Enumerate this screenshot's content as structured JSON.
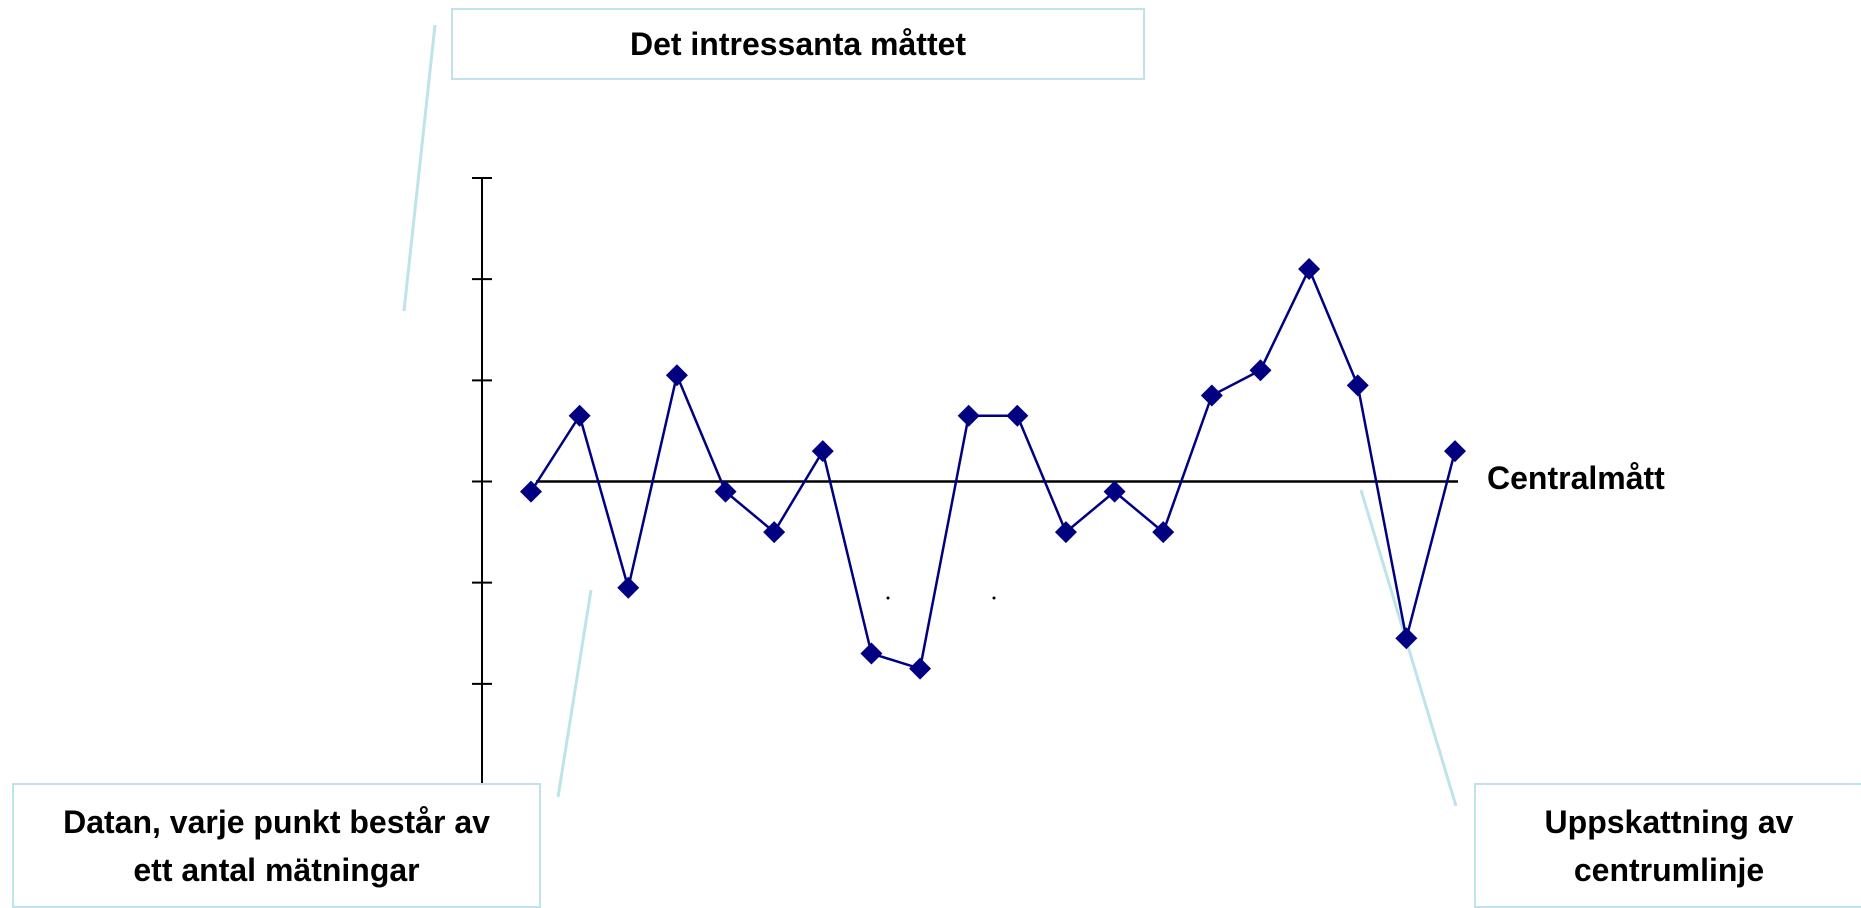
{
  "colors": {
    "series": "#000080",
    "center_line": "#000000",
    "axis": "#000000",
    "callout_border": "#bfe3ea",
    "leader_line": "#bfe3ea"
  },
  "callouts": {
    "measure": "Det intressanta måttet",
    "data_line1": "Datan, varje punkt består av",
    "data_line2": "ett antal mätningar",
    "center_line1": "Uppskattning av",
    "center_line2": "centrumlinje"
  },
  "chart_data": {
    "type": "line",
    "marker": "diamond",
    "x": [
      1,
      2,
      3,
      4,
      5,
      6,
      7,
      8,
      9,
      10,
      11,
      12,
      13,
      14,
      15,
      16,
      17,
      18,
      19,
      20
    ],
    "series": [
      {
        "values": [
          -0.1,
          0.65,
          -1.05,
          1.05,
          -0.1,
          -0.5,
          0.3,
          -1.7,
          -1.85,
          0.65,
          0.65,
          -0.5,
          -0.1,
          -0.5,
          0.85,
          1.1,
          2.1,
          0.95,
          -1.55,
          0.3
        ]
      }
    ],
    "center_line": {
      "value": 0.0,
      "label": "Centralmått"
    },
    "ylim": [
      -3,
      3
    ],
    "y_tick_count": 7,
    "grid": false,
    "legend": "none"
  }
}
